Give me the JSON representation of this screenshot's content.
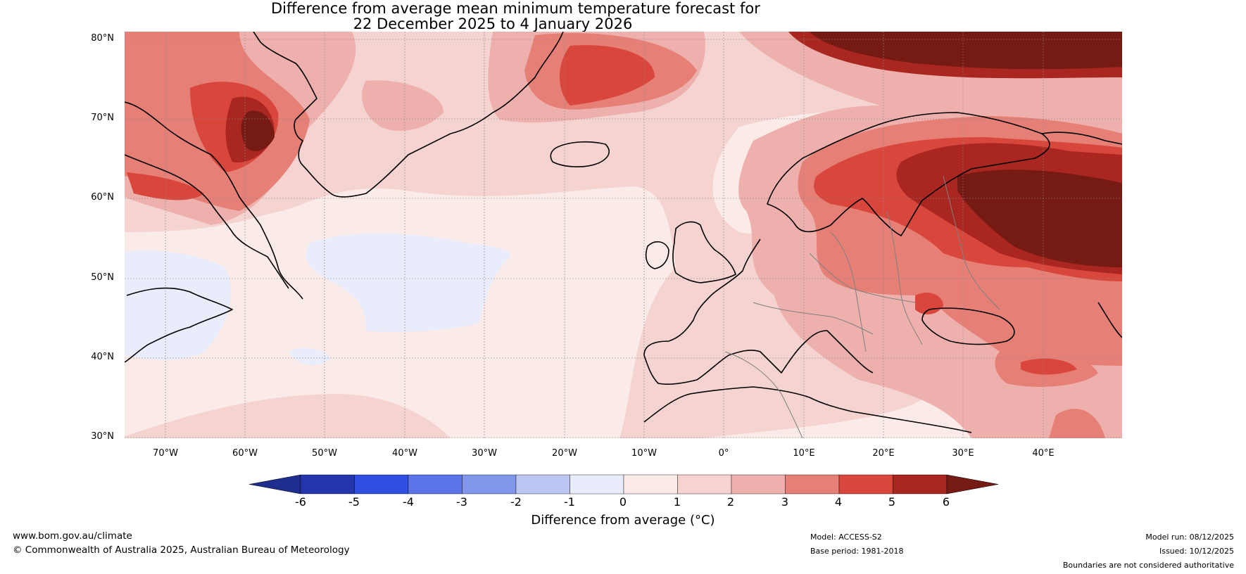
{
  "title": {
    "line1": "Difference from average mean minimum temperature forecast for",
    "line2": "22 December 2025 to 4 January 2026"
  },
  "map": {
    "lat_labels": [
      "80°N",
      "70°N",
      "60°N",
      "50°N",
      "40°N",
      "30°N"
    ],
    "lon_labels": [
      "70°W",
      "60°W",
      "50°W",
      "40°W",
      "30°W",
      "20°W",
      "10°W",
      "0°",
      "10°E",
      "20°E",
      "30°E",
      "40°E"
    ],
    "colors": {
      "ocean_base": "#fbebe8",
      "slightly_cool": "#e8ecfb",
      "anomaly_1_2": "#f4d3d0",
      "anomaly_2_3": "#eeb0ac",
      "anomaly_3_4": "#e67f76",
      "anomaly_4_5": "#d9473c",
      "anomaly_5_6": "#a92621",
      "anomaly_6_plus": "#761a14",
      "coastline": "#000000",
      "borders": "#808080",
      "gridlines": "#888888"
    }
  },
  "colorbar": {
    "ticks": [
      "-6",
      "-5",
      "-4",
      "-3",
      "-2",
      "-1",
      "0",
      "1",
      "2",
      "3",
      "4",
      "5",
      "6"
    ],
    "colors": [
      "#1f2e8e",
      "#2536ad",
      "#2f4fe0",
      "#5b75e8",
      "#8296ec",
      "#bcc6f3",
      "#e8ecfb",
      "#fbebe8",
      "#f4d3d0",
      "#eeb0ac",
      "#e67f76",
      "#d9473c",
      "#a92621",
      "#761a14"
    ],
    "label": "Difference from average (°C)"
  },
  "footer": {
    "website": "www.bom.gov.au/climate",
    "copyright": "© Commonwealth of Australia 2025, Australian Bureau of Meteorology",
    "model": "Model: ACCESS-S2",
    "base_period": "Base period: 1981-2018",
    "model_run": "Model run: 08/12/2025",
    "issued": "Issued: 10/12/2025",
    "disclaimer": "Boundaries are not considered authoritative"
  }
}
